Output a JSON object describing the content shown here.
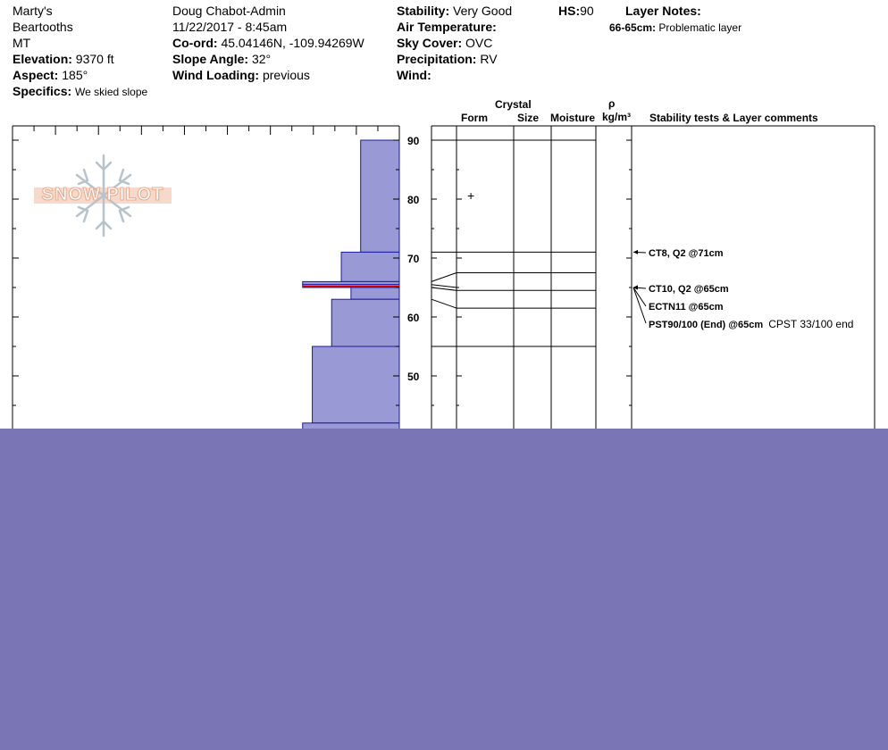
{
  "header": {
    "col1": {
      "name": "Marty's",
      "range": "Beartooths",
      "state": "MT",
      "elevation_label": "Elevation:",
      "elevation_value": "9370 ft",
      "aspect_label": "Aspect:",
      "aspect_value": "185°",
      "specifics_label": "Specifics:",
      "specifics_value": "We skied slope"
    },
    "col2": {
      "observer": "Doug Chabot-Admin",
      "datetime": "11/22/2017 - 8:45am",
      "coord_label": "Co-ord:",
      "coord_value": "45.04146N, -109.94269W",
      "slope_label": "Slope Angle:",
      "slope_value": "32°",
      "wind_loading_label": "Wind Loading:",
      "wind_loading_value": "previous"
    },
    "col3": {
      "stability_label": "Stability:",
      "stability_value": "Very Good",
      "air_temp_label": "Air Temperature:",
      "air_temp_value": "",
      "sky_label": "Sky Cover:",
      "sky_value": "OVC",
      "precip_label": "Precipitation:",
      "precip_value": "RV",
      "wind_label": "Wind:",
      "wind_value": ""
    },
    "hs_label": "HS:",
    "hs_value": "90",
    "layer_notes_label": "Layer Notes:",
    "layer_notes": [
      {
        "range": "66-65cm:",
        "text": "Problematic layer"
      }
    ]
  },
  "logo": {
    "text": "SNOW PILOT"
  },
  "table_headers": {
    "crystal": "Crystal",
    "form": "Form",
    "size": "Size",
    "moisture": "Moisture",
    "rho": "ρ",
    "density_unit": "kg/m³",
    "comments": "Stability tests & Layer comments"
  },
  "crystal_form_symbol": "+",
  "comments": [
    {
      "text": "CT8, Q2 @71cm",
      "extra": ""
    },
    {
      "text": "CT10, Q2 @65cm",
      "extra": ""
    },
    {
      "text": "ECTN11 @65cm",
      "extra": ""
    },
    {
      "text": "PST90/100 (End) @65cm",
      "extra": "CPST 33/100 end"
    }
  ],
  "colors": {
    "profile_fill": "#9999d6",
    "profile_stroke": "#1a1aa0",
    "weak_layer": "#cc0000",
    "bottom_fill": "#7a76b6"
  },
  "chart_data": {
    "type": "bar",
    "orientation": "horizontal",
    "y_axis": "height_cm",
    "ylim": [
      0,
      92
    ],
    "y_ticks": [
      50,
      60,
      70,
      80,
      90
    ],
    "hardness_scale_max": 10,
    "layers": [
      {
        "top": 90,
        "bottom": 71,
        "hardness": 2
      },
      {
        "top": 71,
        "bottom": 66,
        "hardness": 3
      },
      {
        "top": 66,
        "bottom": 65.5,
        "hardness": 5
      },
      {
        "top": 65.5,
        "bottom": 65,
        "hardness": 5
      },
      {
        "top": 65,
        "bottom": 63,
        "hardness": 2.5
      },
      {
        "top": 63,
        "bottom": 55,
        "hardness": 3.5
      },
      {
        "top": 55,
        "bottom": 42,
        "hardness": 4.5
      },
      {
        "top": 42,
        "bottom": 0,
        "hardness": 5
      }
    ],
    "weak_layer_height": 65,
    "table_boundaries": [
      90,
      71,
      67.5,
      64.5,
      61.5,
      55
    ],
    "test_heights": [
      71,
      65,
      65,
      65
    ]
  }
}
